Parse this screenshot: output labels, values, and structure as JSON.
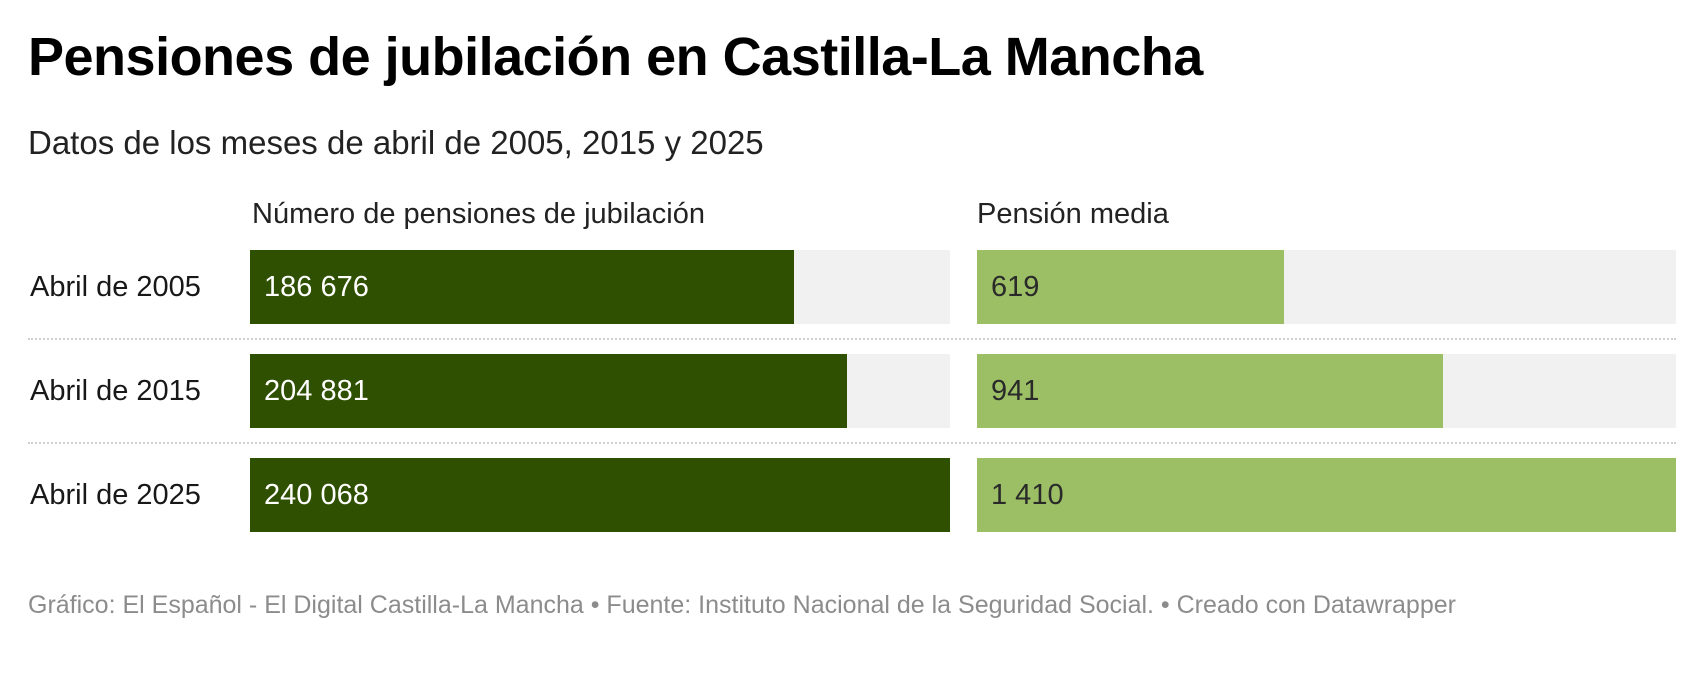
{
  "chart_data": {
    "type": "bar",
    "orientation": "horizontal",
    "title": "Pensiones de jubilación en Castilla-La Mancha",
    "subtitle": "Datos de los meses de abril de 2005, 2015 y 2025",
    "categories": [
      "Abril de 2005",
      "Abril de 2015",
      "Abril de 2025"
    ],
    "series": [
      {
        "name": "Número de pensiones de jubilación",
        "values": [
          186676,
          204881,
          240068
        ],
        "labels": [
          "186 676",
          "204 881",
          "240 068"
        ],
        "color": "#2f5000",
        "label_color": "#ffffff",
        "xlim": [
          0,
          240068
        ]
      },
      {
        "name": "Pensión media",
        "values": [
          619,
          941,
          1410
        ],
        "labels": [
          "619",
          "941",
          "1 410"
        ],
        "color": "#9cbf65",
        "label_color": "#2a2a2a",
        "xlim": [
          0,
          1410
        ]
      }
    ],
    "track_color": "#f1f1f1",
    "grid": false,
    "legend": "none",
    "xlabel": "",
    "ylabel": ""
  },
  "footer": {
    "text": "Gráfico: El Español - El Digital Castilla-La Mancha • Fuente: Instituto Nacional de la Seguridad Social. • Creado con Datawrapper"
  }
}
